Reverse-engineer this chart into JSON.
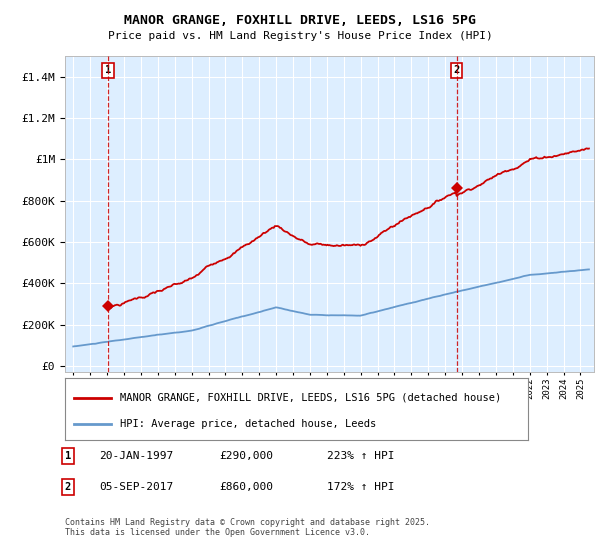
{
  "title1": "MANOR GRANGE, FOXHILL DRIVE, LEEDS, LS16 5PG",
  "title2": "Price paid vs. HM Land Registry's House Price Index (HPI)",
  "legend_label1": "MANOR GRANGE, FOXHILL DRIVE, LEEDS, LS16 5PG (detached house)",
  "legend_label2": "HPI: Average price, detached house, Leeds",
  "sale1_date": "20-JAN-1997",
  "sale1_price": "£290,000",
  "sale1_hpi": "223% ↑ HPI",
  "sale2_date": "05-SEP-2017",
  "sale2_price": "£860,000",
  "sale2_hpi": "172% ↑ HPI",
  "copyright": "Contains HM Land Registry data © Crown copyright and database right 2025.\nThis data is licensed under the Open Government Licence v3.0.",
  "line1_color": "#cc0000",
  "line2_color": "#6699cc",
  "bg_color": "#ddeeff",
  "sale1_year": 1997.05,
  "sale2_year": 2017.67,
  "sale1_price_val": 290000,
  "sale2_price_val": 860000,
  "ylim_max": 1500000,
  "ylim_min": -30000,
  "xlim_min": 1994.5,
  "xlim_max": 2025.8
}
